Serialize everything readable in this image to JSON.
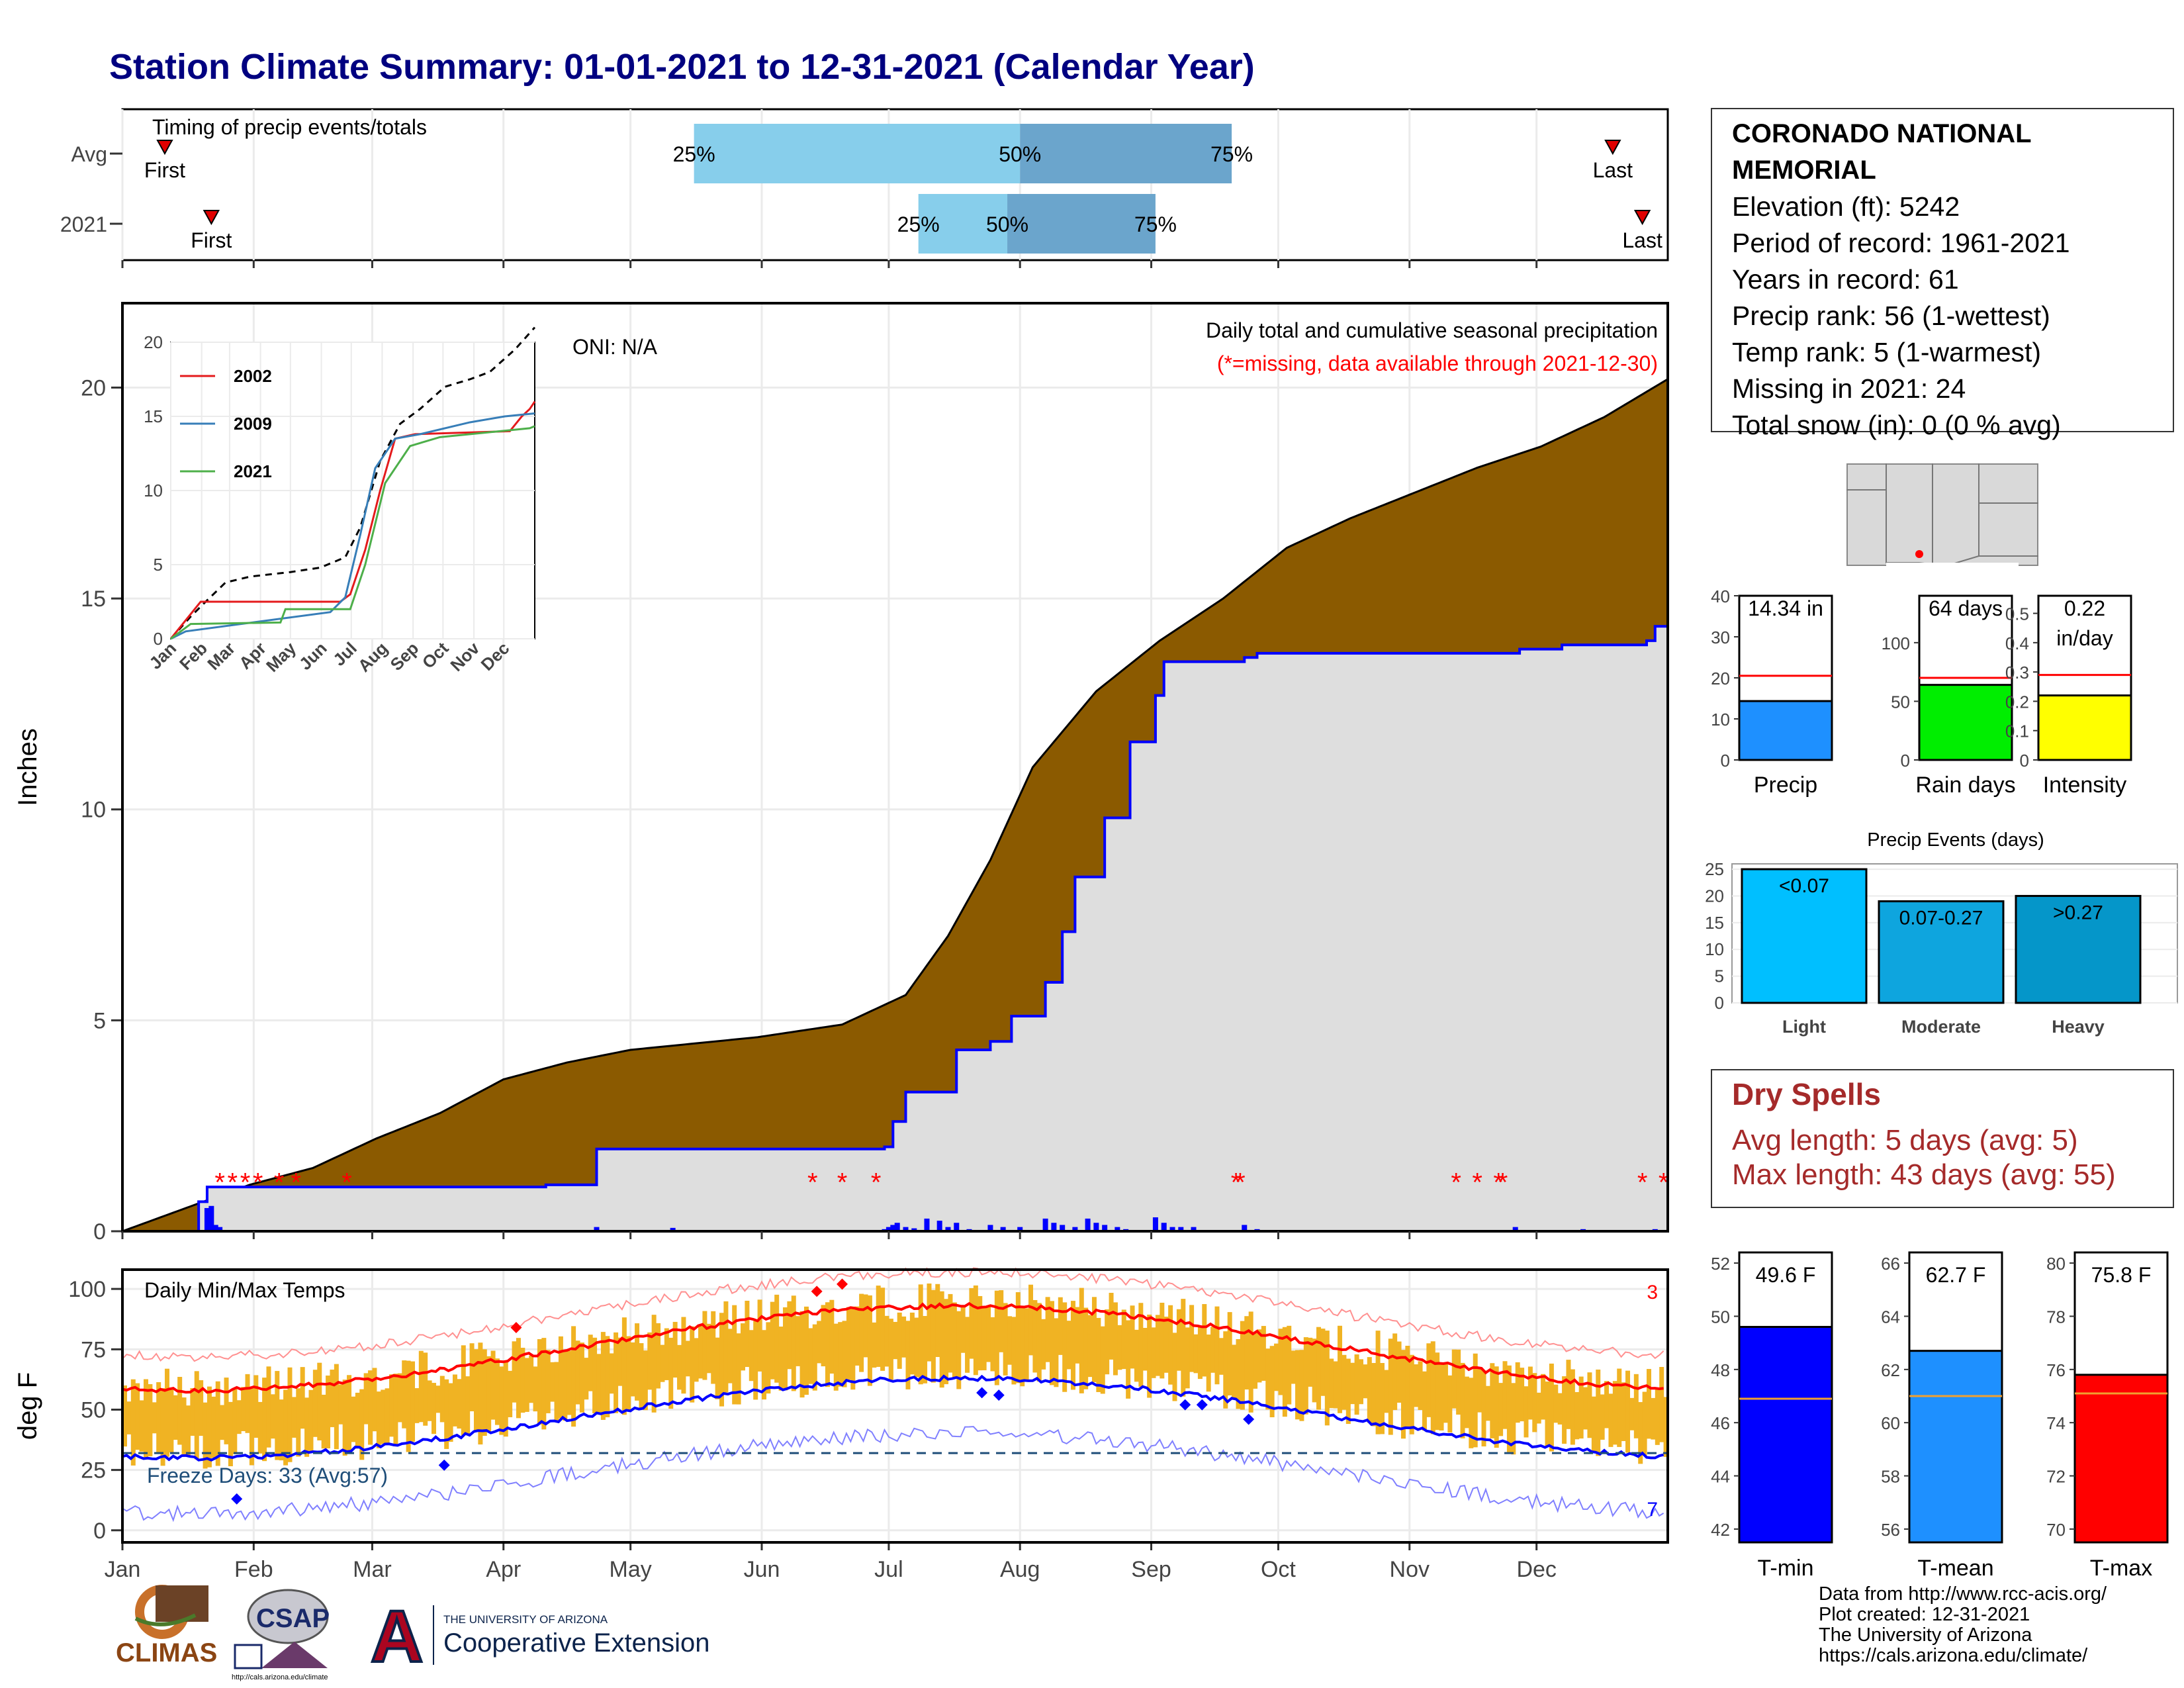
{
  "title": "Station Climate Summary: 01-01-2021 to 12-31-2021 (Calendar Year)",
  "colors": {
    "title": "#000080",
    "precip_fill": "#8B5A00",
    "precip_current": "#dedede",
    "precip_line": "#0000ff",
    "temp_bar": "#f0b323",
    "avg_max": "#ff0000",
    "avg_min": "#0000ff",
    "box_light": "#87ceeb",
    "box_dark": "#6ba5cc"
  },
  "station": {
    "name_line1": "CORONADO NATIONAL",
    "name_line2": "MEMORIAL",
    "elevation": "Elevation (ft): 5242",
    "period": "Period of record: 1961-2021",
    "years": "Years in record: 61",
    "precip_rank": "Precip rank: 56 (1-wettest)",
    "temp_rank": "Temp rank: 5 (1-warmest)",
    "missing": "Missing in 2021: 24",
    "snow": "Total snow (in): 0 (0 % avg)"
  },
  "timing": {
    "title": "Timing of precip events/totals",
    "rows": [
      {
        "label": "Avg",
        "first_label": "First",
        "last_label": "Last",
        "first_doy": 10,
        "last_doy": 352,
        "q25": 135,
        "q50": 212,
        "q75": 262,
        "q25_label": "25%",
        "q50_label": "50%",
        "q75_label": "75%"
      },
      {
        "label": "2021",
        "first_label": "First",
        "last_label": "Last",
        "first_doy": 21,
        "last_doy": 359,
        "q25": 188,
        "q50": 209,
        "q75": 244,
        "q25_label": "25%",
        "q50_label": "50%",
        "q75_label": "75%"
      }
    ]
  },
  "month_labels": [
    "Jan",
    "Feb",
    "Mar",
    "Apr",
    "May",
    "Jun",
    "Jul",
    "Aug",
    "Sep",
    "Oct",
    "Nov",
    "Dec"
  ],
  "month_starts": [
    0,
    31,
    59,
    90,
    120,
    151,
    181,
    212,
    243,
    273,
    304,
    334
  ],
  "precip_panel": {
    "ylabel": "Inches",
    "yticks": [
      0,
      5,
      10,
      15,
      20
    ],
    "ylim": [
      0,
      22
    ],
    "oni": "ONI: N/A",
    "caption": "Daily total and cumulative seasonal precipitation",
    "missing_note": "(*=missing, data available through 2021-12-30)",
    "missing_marker": "*"
  },
  "inset": {
    "yticks": [
      0,
      5,
      10,
      15,
      20
    ],
    "ylim": [
      0,
      20
    ],
    "series_labels": [
      "2002",
      "2009",
      "2021"
    ],
    "series_colors": [
      "#e41a1c",
      "#377eb8",
      "#4daf4a"
    ]
  },
  "temp_panel": {
    "ylabel": "deg F",
    "yticks": [
      0,
      25,
      50,
      75,
      100
    ],
    "ylim": [
      -5,
      108
    ],
    "title": "Daily Min/Max Temps",
    "freeze": "Freeze Days: 33 (Avg:57)",
    "freeze_line": 32,
    "corner_top": "3",
    "corner_bottom": "7"
  },
  "small_bars": [
    {
      "label": "Precip",
      "value": 14.34,
      "text1": "14.34 in",
      "text2": "",
      "avg": 20.5,
      "yticks": [
        0,
        10,
        20,
        30,
        40
      ],
      "ylim": [
        0,
        40
      ],
      "color": "#1e90ff"
    },
    {
      "label": "Rain days",
      "value": 64,
      "text1": "64 days",
      "text2": "",
      "avg": 70,
      "yticks": [
        0,
        50,
        100
      ],
      "ylim": [
        0,
        140
      ],
      "color": "#00ee00"
    },
    {
      "label": "Intensity",
      "value": 0.22,
      "text1": "0.22",
      "text2": "in/day",
      "avg": 0.29,
      "yticks": [
        0.0,
        0.1,
        0.2,
        0.3,
        0.4,
        0.5
      ],
      "ylim": [
        0,
        0.56
      ],
      "color": "#ffff00"
    }
  ],
  "events_chart": {
    "title": "Precip Events (days)",
    "categories": [
      "Light",
      "Moderate",
      "Heavy"
    ],
    "values": [
      25,
      19,
      20
    ],
    "bar_labels": [
      "<0.07",
      "0.07-0.27",
      ">0.27"
    ],
    "colors": [
      "#00bfff",
      "#0ea5de",
      "#0596c9"
    ],
    "yticks": [
      0,
      5,
      10,
      15,
      20,
      25
    ],
    "ylim": [
      0,
      26
    ]
  },
  "dry_spells": {
    "title": "Dry Spells",
    "avg": "Avg length: 5 days (avg: 5)",
    "max": "Max length: 43 days (avg: 55)"
  },
  "temp_bars": [
    {
      "label": "T-min",
      "value": 49.6,
      "text": "49.6 F",
      "avg": 46.9,
      "ylim": [
        41.5,
        52.4
      ],
      "yticks": [
        42,
        44,
        46,
        48,
        50,
        52
      ],
      "color": "#0000ff"
    },
    {
      "label": "T-mean",
      "value": 62.7,
      "text": "62.7 F",
      "avg": 61.0,
      "ylim": [
        55.5,
        66.4
      ],
      "yticks": [
        56,
        58,
        60,
        62,
        64,
        66
      ],
      "color": "#1e90ff"
    },
    {
      "label": "T-max",
      "value": 75.8,
      "text": "75.8 F",
      "avg": 75.1,
      "ylim": [
        69.5,
        80.4
      ],
      "yticks": [
        70,
        72,
        74,
        76,
        78,
        80
      ],
      "color": "#ff0000"
    }
  ],
  "credits": [
    "Data from http://www.rcc-acis.org/",
    "Plot created: 12-31-2021",
    "The University of Arizona",
    "https://cals.arizona.edu/climate/"
  ],
  "logos": {
    "climas": "CLIMAS",
    "csap": "CSAP",
    "csap_url": "http://cals.arizona.edu/climate",
    "ua_small": "THE UNIVERSITY OF ARIZONA",
    "ua_big": "Cooperative Extension",
    "ua_letter": "A"
  }
}
